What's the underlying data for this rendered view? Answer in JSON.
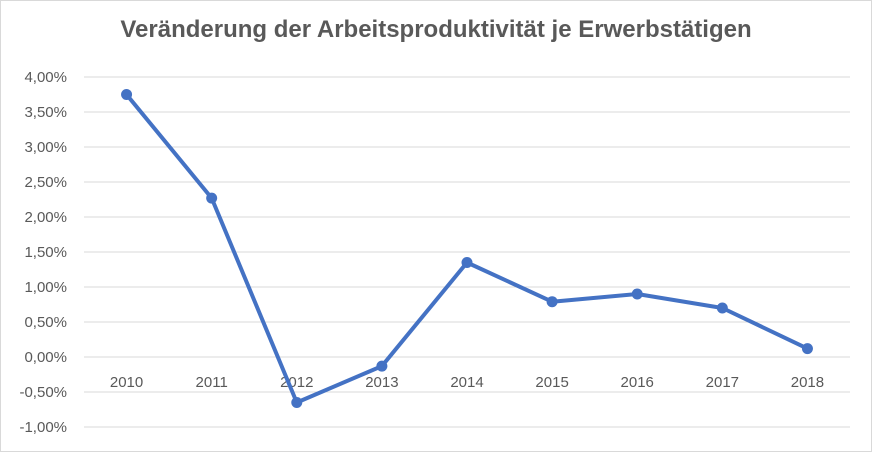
{
  "chart_data": {
    "type": "line",
    "title": "Veränderung der Arbeitsproduktivität je Erwerbstätigen",
    "xlabel": "",
    "ylabel": "",
    "categories": [
      "2010",
      "2011",
      "2012",
      "2013",
      "2014",
      "2015",
      "2016",
      "2017",
      "2018"
    ],
    "series": [
      {
        "values": [
          3.75,
          2.27,
          -0.65,
          -0.13,
          1.35,
          0.79,
          0.9,
          0.7,
          0.12
        ],
        "color": "#4472c4"
      }
    ],
    "ylim": [
      -1.0,
      4.0
    ],
    "yticks": [
      4.0,
      3.5,
      3.0,
      2.5,
      2.0,
      1.5,
      1.0,
      0.5,
      0.0,
      -0.5,
      -1.0
    ],
    "ytick_labels": [
      "4,00%",
      "3,50%",
      "3,00%",
      "2,50%",
      "2,00%",
      "1,50%",
      "1,00%",
      "0,50%",
      "0,00%",
      "-0,50%",
      "-1,00%"
    ],
    "grid": true,
    "legend": "none"
  }
}
